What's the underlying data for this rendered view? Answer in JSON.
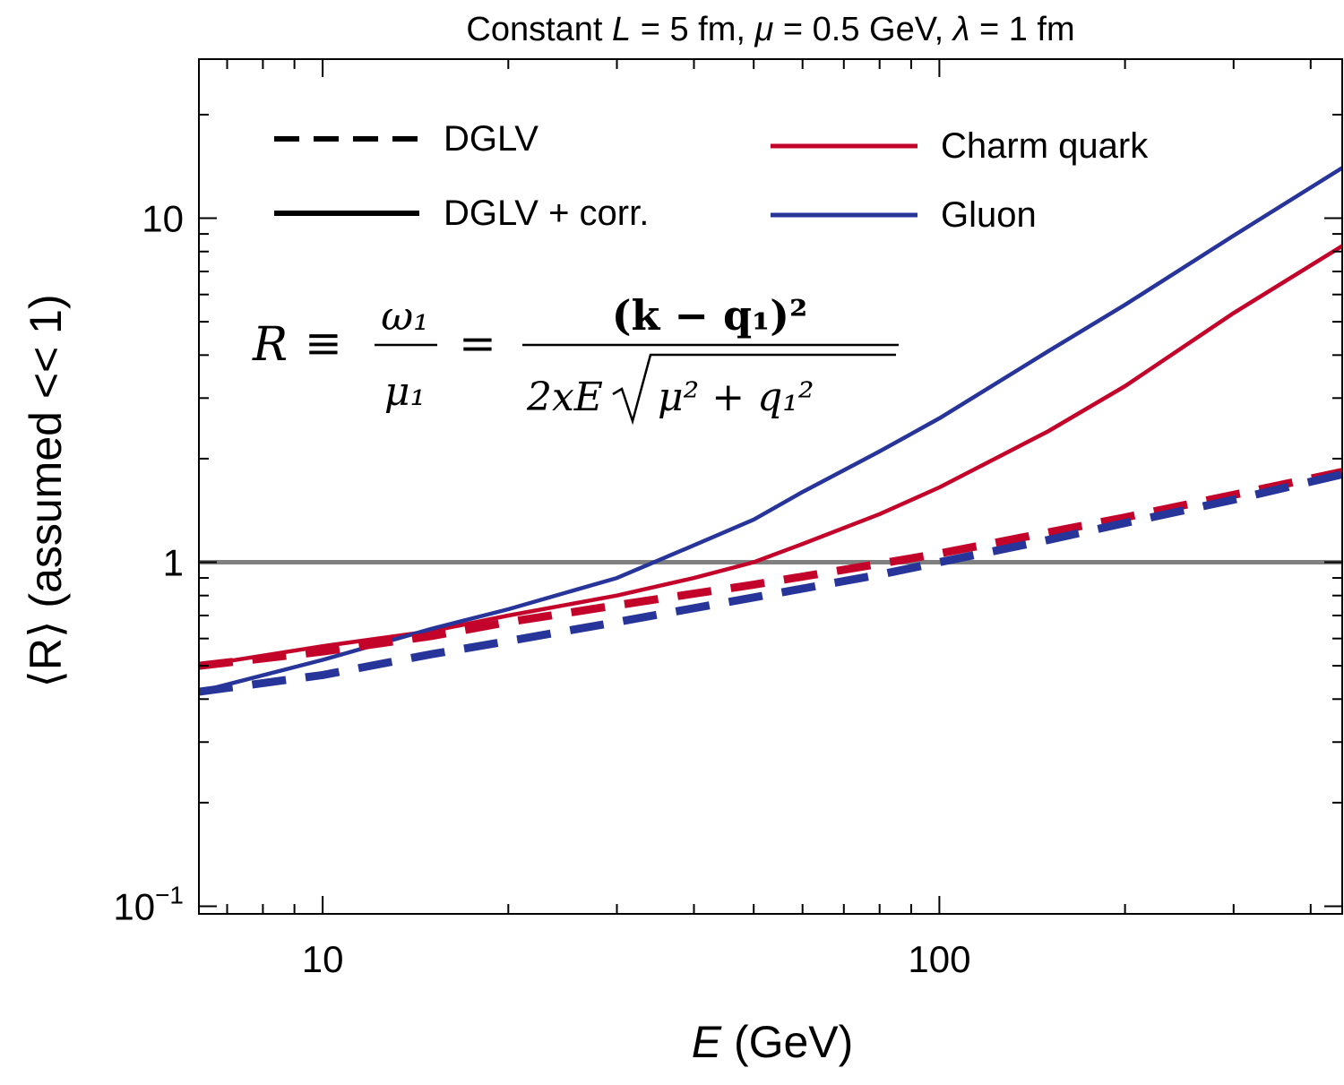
{
  "chart_data": {
    "type": "line",
    "title": {
      "t1": "Constant ",
      "t2": "L",
      "t3": " = 5 fm, ",
      "t4": "μ",
      "t5": " = 0.5 GeV, ",
      "t6": "λ",
      "t7": " = 1 fm"
    },
    "xlabel": {
      "var": "E",
      "rest": " (GeV)"
    },
    "ylabel": "⟨R⟩ (assumed << 1)",
    "x_scale": "log",
    "y_scale": "log",
    "xlim": [
      6.3,
      450
    ],
    "ylim": [
      0.095,
      29
    ],
    "x_ticks": [
      {
        "value": 10,
        "label": "10"
      },
      {
        "value": 100,
        "label": "100"
      }
    ],
    "y_ticks": [
      {
        "value": 0.1,
        "label": "10",
        "sup": "−1"
      },
      {
        "value": 1,
        "label": "1",
        "sup": ""
      },
      {
        "value": 10,
        "label": "10",
        "sup": ""
      }
    ],
    "reference_line": {
      "y": 1,
      "color": "#808080"
    },
    "legend": {
      "placement": "top",
      "style_entries": [
        {
          "label": "DGLV",
          "style": "dashed"
        },
        {
          "label": "DGLV + corr.",
          "style": "solid"
        }
      ],
      "color_entries": [
        {
          "label": "Charm quark",
          "color": "#c4032b"
        },
        {
          "label": "Gluon",
          "color": "#27349a"
        }
      ]
    },
    "formula": {
      "lhs": "R",
      "eq": "≡",
      "frac1_num": "ω₁",
      "frac1_den": "μ₁",
      "eq2": "=",
      "frac2_num": "(k − q₁)²",
      "frac2_den_pre": "2xE",
      "frac2_den_rad": "μ² + q₁²"
    },
    "series": [
      {
        "species": "Charm quark",
        "model": "DGLV + corr.",
        "color": "#c4032b",
        "style": "solid",
        "points": [
          [
            6.3,
            0.5
          ],
          [
            10,
            0.57
          ],
          [
            15,
            0.63
          ],
          [
            20,
            0.7
          ],
          [
            30,
            0.8
          ],
          [
            40,
            0.9
          ],
          [
            50,
            1.0
          ],
          [
            60,
            1.13
          ],
          [
            80,
            1.38
          ],
          [
            100,
            1.65
          ],
          [
            150,
            2.4
          ],
          [
            200,
            3.25
          ],
          [
            300,
            5.3
          ],
          [
            450,
            8.3
          ]
        ]
      },
      {
        "species": "Gluon",
        "model": "DGLV + corr.",
        "color": "#27349a",
        "style": "solid",
        "points": [
          [
            6.3,
            0.42
          ],
          [
            10,
            0.52
          ],
          [
            15,
            0.64
          ],
          [
            20,
            0.73
          ],
          [
            30,
            0.9
          ],
          [
            40,
            1.12
          ],
          [
            50,
            1.33
          ],
          [
            60,
            1.6
          ],
          [
            80,
            2.1
          ],
          [
            100,
            2.62
          ],
          [
            150,
            4.1
          ],
          [
            200,
            5.6
          ],
          [
            300,
            8.9
          ],
          [
            450,
            14
          ]
        ]
      },
      {
        "species": "Charm quark",
        "model": "DGLV",
        "color": "#c4032b",
        "style": "dashed",
        "points": [
          [
            6.3,
            0.5
          ],
          [
            10,
            0.55
          ],
          [
            15,
            0.61
          ],
          [
            20,
            0.67
          ],
          [
            30,
            0.75
          ],
          [
            50,
            0.86
          ],
          [
            80,
            0.99
          ],
          [
            100,
            1.06
          ],
          [
            150,
            1.22
          ],
          [
            200,
            1.35
          ],
          [
            300,
            1.57
          ],
          [
            450,
            1.83
          ]
        ]
      },
      {
        "species": "Gluon",
        "model": "DGLV",
        "color": "#27349a",
        "style": "dashed",
        "points": [
          [
            6.3,
            0.42
          ],
          [
            10,
            0.47
          ],
          [
            15,
            0.54
          ],
          [
            20,
            0.59
          ],
          [
            30,
            0.67
          ],
          [
            50,
            0.79
          ],
          [
            80,
            0.92
          ],
          [
            100,
            1.0
          ],
          [
            150,
            1.16
          ],
          [
            200,
            1.3
          ],
          [
            300,
            1.52
          ],
          [
            450,
            1.8
          ]
        ]
      }
    ]
  }
}
